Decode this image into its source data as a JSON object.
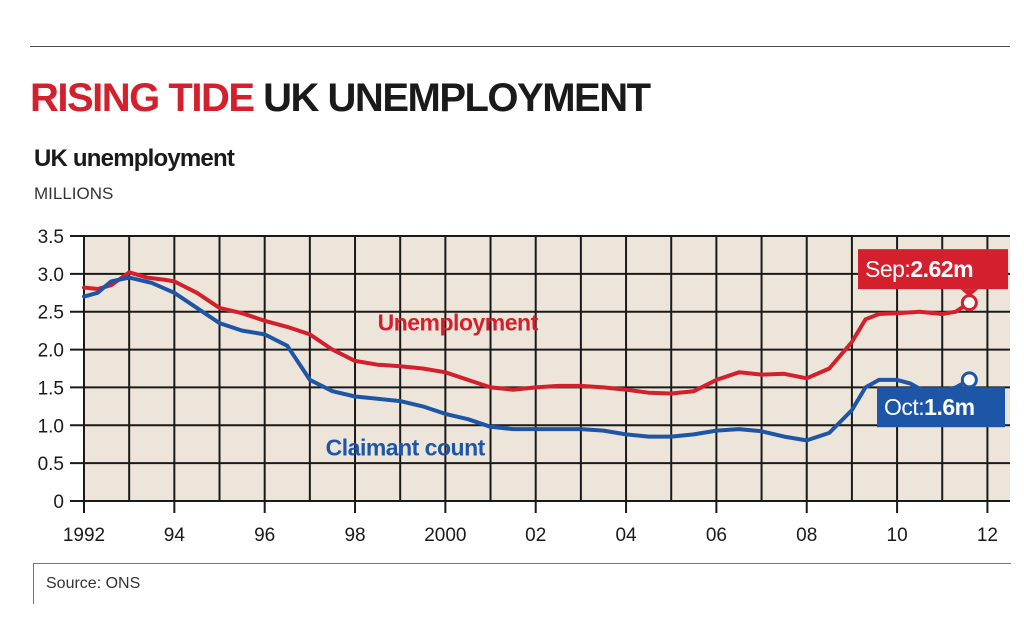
{
  "headline": {
    "kicker": "RISING TIDE",
    "main": "UK UNEMPLOYMENT"
  },
  "colors": {
    "unemployment": "#d4202c",
    "claimant": "#1d56a6",
    "plot_bg": "#ede5d9",
    "grid": "#1a1a1a"
  },
  "chart_data": {
    "type": "line",
    "title": "UK unemployment",
    "unit_label": "MILLIONS",
    "xlim": [
      1992.0,
      2012.5
    ],
    "ylim": [
      0,
      3.5
    ],
    "y_ticks": [
      0,
      0.5,
      1.0,
      1.5,
      2.0,
      2.5,
      3.0,
      3.5
    ],
    "y_tick_labels": [
      "0",
      "0.5",
      "1.0",
      "1.5",
      "2.0",
      "2.5",
      "3.0",
      "3.5"
    ],
    "x_ticks": [
      1992,
      1994,
      1996,
      1998,
      2000,
      2002,
      2004,
      2006,
      2008,
      2010,
      2012
    ],
    "x_tick_labels": [
      "1992",
      "94",
      "96",
      "98",
      "2000",
      "02",
      "04",
      "06",
      "08",
      "10",
      "12"
    ],
    "grid": true,
    "series": [
      {
        "name": "Unemployment",
        "color": "#d4202c",
        "points": [
          [
            1992.0,
            2.82
          ],
          [
            1992.3,
            2.8
          ],
          [
            1992.6,
            2.85
          ],
          [
            1993.0,
            3.02
          ],
          [
            1993.4,
            2.95
          ],
          [
            1993.8,
            2.92
          ],
          [
            1994.0,
            2.9
          ],
          [
            1994.5,
            2.75
          ],
          [
            1995.0,
            2.55
          ],
          [
            1995.5,
            2.48
          ],
          [
            1996.0,
            2.38
          ],
          [
            1996.5,
            2.3
          ],
          [
            1997.0,
            2.2
          ],
          [
            1997.5,
            2.0
          ],
          [
            1998.0,
            1.85
          ],
          [
            1998.5,
            1.8
          ],
          [
            1999.0,
            1.78
          ],
          [
            1999.5,
            1.75
          ],
          [
            2000.0,
            1.7
          ],
          [
            2000.5,
            1.6
          ],
          [
            2001.0,
            1.5
          ],
          [
            2001.5,
            1.47
          ],
          [
            2002.0,
            1.5
          ],
          [
            2002.5,
            1.52
          ],
          [
            2003.0,
            1.52
          ],
          [
            2003.5,
            1.5
          ],
          [
            2004.0,
            1.47
          ],
          [
            2004.5,
            1.43
          ],
          [
            2005.0,
            1.42
          ],
          [
            2005.5,
            1.45
          ],
          [
            2006.0,
            1.6
          ],
          [
            2006.5,
            1.7
          ],
          [
            2007.0,
            1.67
          ],
          [
            2007.5,
            1.68
          ],
          [
            2008.0,
            1.62
          ],
          [
            2008.5,
            1.75
          ],
          [
            2009.0,
            2.1
          ],
          [
            2009.3,
            2.4
          ],
          [
            2009.6,
            2.47
          ],
          [
            2010.0,
            2.48
          ],
          [
            2010.5,
            2.5
          ],
          [
            2011.0,
            2.47
          ],
          [
            2011.3,
            2.5
          ],
          [
            2011.6,
            2.62
          ]
        ]
      },
      {
        "name": "Claimant count",
        "color": "#1d56a6",
        "points": [
          [
            1992.0,
            2.7
          ],
          [
            1992.3,
            2.75
          ],
          [
            1992.6,
            2.9
          ],
          [
            1993.0,
            2.95
          ],
          [
            1993.5,
            2.88
          ],
          [
            1994.0,
            2.75
          ],
          [
            1994.5,
            2.55
          ],
          [
            1995.0,
            2.35
          ],
          [
            1995.5,
            2.25
          ],
          [
            1996.0,
            2.2
          ],
          [
            1996.5,
            2.05
          ],
          [
            1997.0,
            1.6
          ],
          [
            1997.5,
            1.45
          ],
          [
            1998.0,
            1.38
          ],
          [
            1998.5,
            1.35
          ],
          [
            1999.0,
            1.32
          ],
          [
            1999.5,
            1.25
          ],
          [
            2000.0,
            1.15
          ],
          [
            2000.5,
            1.08
          ],
          [
            2001.0,
            0.98
          ],
          [
            2001.5,
            0.95
          ],
          [
            2002.0,
            0.95
          ],
          [
            2002.5,
            0.95
          ],
          [
            2003.0,
            0.95
          ],
          [
            2003.5,
            0.93
          ],
          [
            2004.0,
            0.88
          ],
          [
            2004.5,
            0.85
          ],
          [
            2005.0,
            0.85
          ],
          [
            2005.5,
            0.88
          ],
          [
            2006.0,
            0.93
          ],
          [
            2006.5,
            0.95
          ],
          [
            2007.0,
            0.92
          ],
          [
            2007.5,
            0.85
          ],
          [
            2008.0,
            0.8
          ],
          [
            2008.5,
            0.9
          ],
          [
            2009.0,
            1.2
          ],
          [
            2009.3,
            1.5
          ],
          [
            2009.6,
            1.6
          ],
          [
            2010.0,
            1.6
          ],
          [
            2010.3,
            1.55
          ],
          [
            2010.6,
            1.45
          ],
          [
            2011.0,
            1.45
          ],
          [
            2011.3,
            1.5
          ],
          [
            2011.6,
            1.6
          ]
        ]
      }
    ],
    "series_labels": {
      "unemployment": "Unemployment",
      "claimant": "Claimant count"
    },
    "annotations": [
      {
        "series": "Unemployment",
        "prefix": "Sep:",
        "value": "2.62m",
        "x": 2011.6,
        "y": 2.62
      },
      {
        "series": "Claimant count",
        "prefix": "Oct:",
        "value": "1.6m",
        "x": 2011.6,
        "y": 1.6
      }
    ]
  },
  "source": "Source: ONS"
}
